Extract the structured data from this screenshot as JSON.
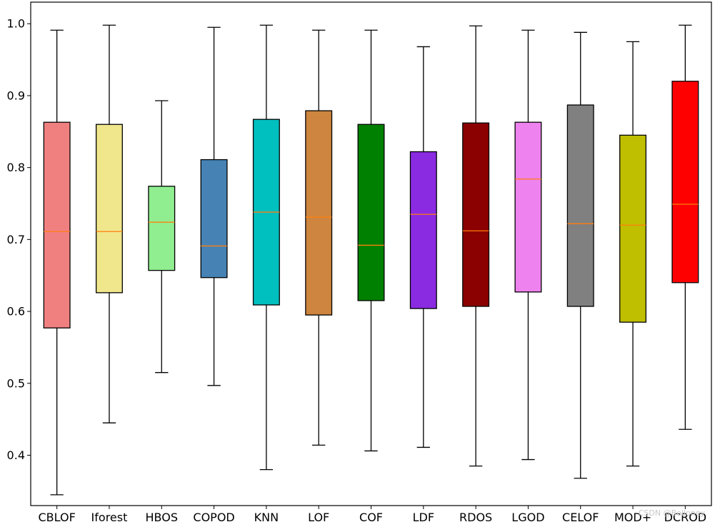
{
  "chart_data": {
    "type": "boxplot",
    "title": "",
    "xlabel": "",
    "ylabel": "",
    "ylim": [
      0.33,
      1.03
    ],
    "yticks": [
      0.4,
      0.5,
      0.6,
      0.7,
      0.8,
      0.9,
      1.0
    ],
    "ytick_labels": [
      "0.4",
      "0.5",
      "0.6",
      "0.7",
      "0.8",
      "0.9",
      "1.0"
    ],
    "grid": false,
    "median_color": "#ff7f0e",
    "categories": [
      "CBLOF",
      "Iforest",
      "HBOS",
      "COPOD",
      "KNN",
      "LOF",
      "COF",
      "LDF",
      "RDOS",
      "LGOD",
      "CELOF",
      "MOD+",
      "DCROD"
    ],
    "boxes": [
      {
        "label": "CBLOF",
        "whisker_low": 0.345,
        "q1": 0.577,
        "median": 0.711,
        "q3": 0.863,
        "whisker_high": 0.991,
        "color": "#f08080"
      },
      {
        "label": "Iforest",
        "whisker_low": 0.445,
        "q1": 0.626,
        "median": 0.711,
        "q3": 0.86,
        "whisker_high": 0.998,
        "color": "#f0e68c"
      },
      {
        "label": "HBOS",
        "whisker_low": 0.515,
        "q1": 0.657,
        "median": 0.724,
        "q3": 0.774,
        "whisker_high": 0.893,
        "color": "#90ee90"
      },
      {
        "label": "COPOD",
        "whisker_low": 0.497,
        "q1": 0.647,
        "median": 0.691,
        "q3": 0.811,
        "whisker_high": 0.995,
        "color": "#4682b4"
      },
      {
        "label": "KNN",
        "whisker_low": 0.38,
        "q1": 0.609,
        "median": 0.738,
        "q3": 0.867,
        "whisker_high": 0.998,
        "color": "#00bfbf"
      },
      {
        "label": "LOF",
        "whisker_low": 0.414,
        "q1": 0.595,
        "median": 0.731,
        "q3": 0.879,
        "whisker_high": 0.991,
        "color": "#cd853f"
      },
      {
        "label": "COF",
        "whisker_low": 0.406,
        "q1": 0.615,
        "median": 0.692,
        "q3": 0.86,
        "whisker_high": 0.991,
        "color": "#008000"
      },
      {
        "label": "LDF",
        "whisker_low": 0.411,
        "q1": 0.604,
        "median": 0.735,
        "q3": 0.822,
        "whisker_high": 0.968,
        "color": "#8a2be2"
      },
      {
        "label": "RDOS",
        "whisker_low": 0.385,
        "q1": 0.607,
        "median": 0.712,
        "q3": 0.862,
        "whisker_high": 0.997,
        "color": "#8b0000"
      },
      {
        "label": "LGOD",
        "whisker_low": 0.394,
        "q1": 0.627,
        "median": 0.784,
        "q3": 0.863,
        "whisker_high": 0.991,
        "color": "#ee82ee"
      },
      {
        "label": "CELOF",
        "whisker_low": 0.368,
        "q1": 0.607,
        "median": 0.722,
        "q3": 0.887,
        "whisker_high": 0.988,
        "color": "#808080"
      },
      {
        "label": "MOD+",
        "whisker_low": 0.385,
        "q1": 0.585,
        "median": 0.72,
        "q3": 0.845,
        "whisker_high": 0.975,
        "color": "#bfbf00"
      },
      {
        "label": "DCROD",
        "whisker_low": 0.436,
        "q1": 0.64,
        "median": 0.749,
        "q3": 0.92,
        "whisker_high": 0.998,
        "color": "#ff0000"
      }
    ]
  },
  "watermark": "CSDN @Belloney"
}
